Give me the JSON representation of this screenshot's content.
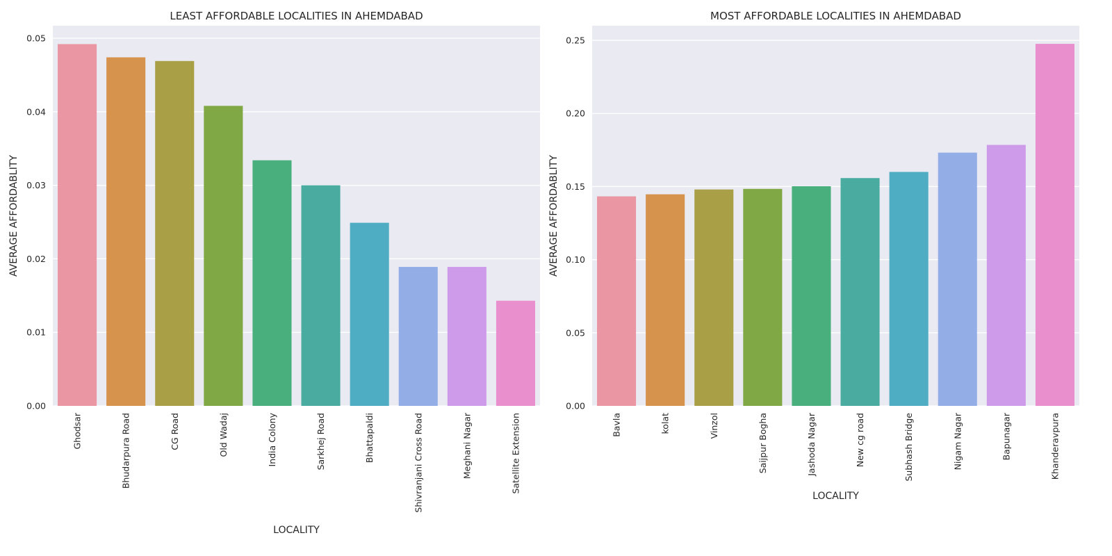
{
  "chart_data": [
    {
      "type": "bar",
      "title": "LEAST AFFORDABLE LOCALITIES IN AHEMDABAD",
      "xlabel": "LOCALITY",
      "ylabel": "AVERAGE AFFORDABLITY",
      "ylim": [
        0,
        0.0517
      ],
      "yticks": [
        0.0,
        0.01,
        0.02,
        0.03,
        0.04,
        0.05
      ],
      "ytick_labels": [
        "0.00",
        "0.01",
        "0.02",
        "0.03",
        "0.04",
        "0.05"
      ],
      "grid": true,
      "categories": [
        "Ghodsar",
        "Bhudarpura Road",
        "CG Road",
        "Old Wadaj",
        "India Colony",
        "Sarkhej Road",
        "Bhattapaldi",
        "Shivranjani Cross Road",
        "Meghani Nagar",
        "Satellite Extension"
      ],
      "values": [
        0.0492,
        0.0474,
        0.0469,
        0.0408,
        0.0334,
        0.03,
        0.0249,
        0.0189,
        0.0189,
        0.0143
      ],
      "colors": [
        "#ea96a3",
        "#d5934e",
        "#a99f47",
        "#80a844",
        "#49af7d",
        "#4aaca0",
        "#4eacc3",
        "#93aee7",
        "#ce9beb",
        "#e98fce"
      ]
    },
    {
      "type": "bar",
      "title": "MOST AFFORDABLE LOCALITIES IN AHEMDABAD",
      "xlabel": "LOCALITY",
      "ylabel": "AVERAGE AFFORDABLITY",
      "ylim": [
        0,
        0.26
      ],
      "yticks": [
        0.0,
        0.05,
        0.1,
        0.15,
        0.2,
        0.25
      ],
      "ytick_labels": [
        "0.00",
        "0.05",
        "0.10",
        "0.15",
        "0.20",
        "0.25"
      ],
      "grid": true,
      "categories": [
        "Bavla",
        "kolat",
        "Vinzol",
        "Saijpur Bogha",
        "Jashoda Nagar",
        "New cg road",
        "Subhash Bridge",
        "Nigam Nagar",
        "Bapunagar",
        "Khanderavpura"
      ],
      "values": [
        0.1433,
        0.1447,
        0.148,
        0.1484,
        0.1502,
        0.1558,
        0.16,
        0.1732,
        0.1785,
        0.2476
      ],
      "colors": [
        "#ea96a3",
        "#d5934e",
        "#a99f47",
        "#80a844",
        "#49af7d",
        "#4aaca0",
        "#4eacc3",
        "#93aee7",
        "#ce9beb",
        "#e98fce"
      ]
    }
  ]
}
